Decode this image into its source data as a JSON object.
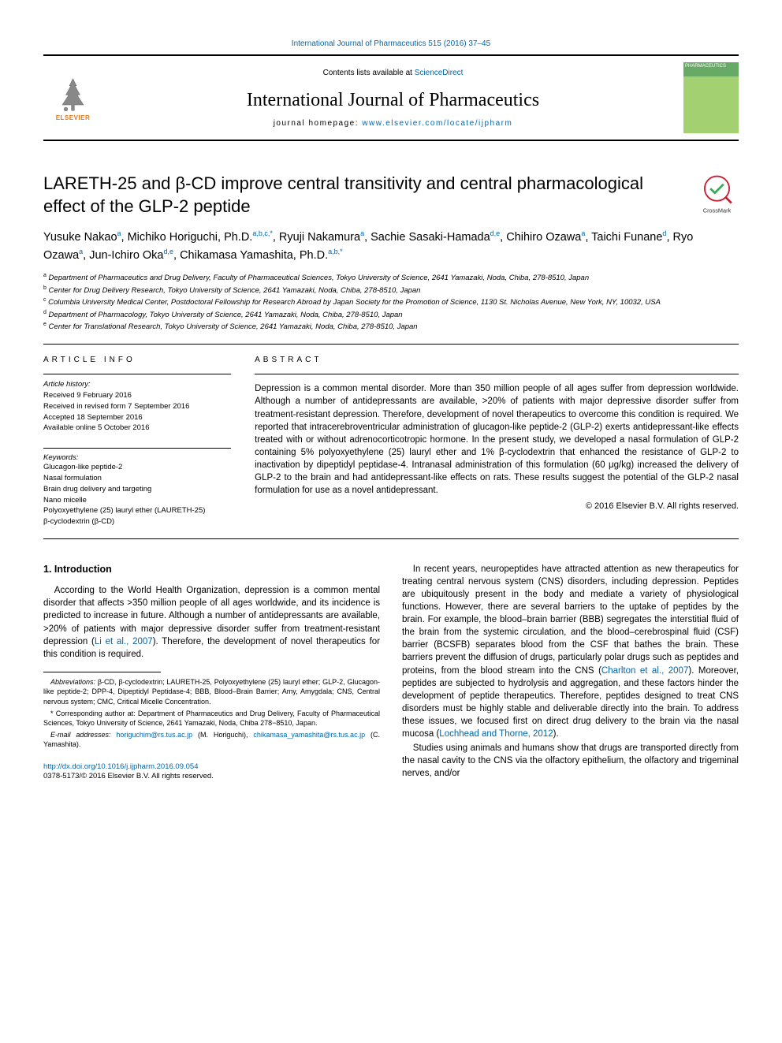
{
  "top_link": "International Journal of Pharmaceutics 515 (2016) 37–45",
  "header": {
    "contents_pre": "Contents lists available at ",
    "contents_link": "ScienceDirect",
    "journal": "International Journal of Pharmaceutics",
    "homepage_pre": "journal homepage: ",
    "homepage_link": "www.elsevier.com/locate/ijpharm",
    "publisher": "ELSEVIER",
    "cover_label": "PHARMACEUTICS"
  },
  "title": "LARETH-25 and β-CD improve central transitivity and central pharmacological effect of the GLP-2 peptide",
  "crossmark_label": "CrossMark",
  "authors_html": "Yusuke Nakao<sup>a</sup>, Michiko Horiguchi, Ph.D.<sup>a,b,c,*</sup>, Ryuji Nakamura<sup>a</sup>, Sachie Sasaki-Hamada<sup>d,e</sup>, Chihiro Ozawa<sup>a</sup>, Taichi Funane<sup>d</sup>, Ryo Ozawa<sup>a</sup>, Jun-Ichiro Oka<sup>d,e</sup>, Chikamasa Yamashita, Ph.D.<sup>a,b,*</sup>",
  "affiliations": [
    {
      "sup": "a",
      "text": "Department of Pharmaceutics and Drug Delivery, Faculty of Pharmaceutical Sciences, Tokyo University of Science, 2641 Yamazaki, Noda, Chiba, 278-8510, Japan"
    },
    {
      "sup": "b",
      "text": "Center for Drug Delivery Research, Tokyo University of Science, 2641 Yamazaki, Noda, Chiba, 278-8510, Japan"
    },
    {
      "sup": "c",
      "text": "Columbia University Medical Center, Postdoctoral Fellowship for Research Abroad by Japan Society for the Promotion of Science, 1130 St. Nicholas Avenue, New York, NY, 10032, USA"
    },
    {
      "sup": "d",
      "text": "Department of Pharmacology, Tokyo University of Science, 2641 Yamazaki, Noda, Chiba, 278-8510, Japan"
    },
    {
      "sup": "e",
      "text": "Center for Translational Research, Tokyo University of Science, 2641 Yamazaki, Noda, Chiba, 278-8510, Japan"
    }
  ],
  "article_info": {
    "head": "ARTICLE INFO",
    "hist_label": "Article history:",
    "hist": [
      "Received 9 February 2016",
      "Received in revised form 7 September 2016",
      "Accepted 18 September 2016",
      "Available online 5 October 2016"
    ],
    "kw_label": "Keywords:",
    "kw": [
      "Glucagon-like peptide-2",
      "Nasal formulation",
      "Brain drug delivery and targeting",
      "Nano micelle",
      "Polyoxyethylene (25) lauryl ether (LAURETH-25)",
      "β-cyclodextrin (β-CD)"
    ]
  },
  "abstract": {
    "head": "ABSTRACT",
    "text": "Depression is a common mental disorder. More than 350 million people of all ages suffer from depression worldwide. Although a number of antidepressants are available, >20% of patients with major depressive disorder suffer from treatment-resistant depression. Therefore, development of novel therapeutics to overcome this condition is required. We reported that intracerebroventricular administration of glucagon-like peptide-2 (GLP-2) exerts antidepressant-like effects treated with or without adrenocorticotropic hormone. In the present study, we developed a nasal formulation of GLP-2 containing 5% polyoxyethylene (25) lauryl ether and 1% β-cyclodextrin that enhanced the resistance of GLP-2 to inactivation by dipeptidyl peptidase-4. Intranasal administration of this formulation (60 μg/kg) increased the delivery of GLP-2 to the brain and had antidepressant-like effects on rats. These results suggest the potential of the GLP-2 nasal formulation for use as a novel antidepressant.",
    "copy": "© 2016 Elsevier B.V. All rights reserved."
  },
  "body": {
    "intro_head": "1. Introduction",
    "p1a": "According to the World Health Organization, depression is a common mental disorder that affects >350 million people of all ages worldwide, and its incidence is predicted to increase in future. Although a number of antidepressants are available, >20% of patients with major depressive disorder suffer from treatment-resistant depression (",
    "p1_cite": "Li et al., 2007",
    "p1b": "). Therefore, the development of novel therapeutics for this condition is required.",
    "p2a": "In recent years, neuropeptides have attracted attention as new therapeutics for treating central nervous system (CNS) disorders, including depression. Peptides are ubiquitously present in the body and mediate a variety of physiological functions. However, there are several barriers to the uptake of peptides by the brain. For example, the blood–brain barrier (BBB) segregates the interstitial fluid of the brain from the systemic circulation, and the blood–cerebrospinal fluid (CSF) barrier (BCSFB) separates blood from the CSF that bathes the brain. These barriers prevent the diffusion of drugs, particularly polar drugs such as peptides and proteins, from the blood stream into the CNS (",
    "p2_cite": "Charlton et al., 2007",
    "p2b": "). Moreover, peptides are subjected to hydrolysis and aggregation, and these factors hinder the development of peptide therapeutics. Therefore, peptides designed to treat CNS disorders must be highly stable and deliverable directly into the brain. To address these issues, we focused first on direct drug delivery to the brain via the nasal mucosa (",
    "p2_cite2": "Lochhead and Thorne, 2012",
    "p2c": ").",
    "p3": "Studies using animals and humans show that drugs are transported directly from the nasal cavity to the CNS via the olfactory epithelium, the olfactory and trigeminal nerves, and/or"
  },
  "footnotes": {
    "abbr_lbl": "Abbreviations:",
    "abbr": " β-CD, β-cyclodextrin; LAURETH-25, Polyoxyethylene (25) lauryl ether; GLP-2, Glucagon-like peptide-2; DPP-4, Dipeptidyl Peptidase-4; BBB, Blood–Brain Barrier; Amy, Amygdala; CNS, Central nervous system; CMC, Critical Micelle Concentration.",
    "corr": "* Corresponding author at: Department of Pharmaceutics and Drug Delivery, Faculty of Pharmaceutical Sciences, Tokyo University of Science, 2641 Yamazaki, Noda, Chiba 278−8510, Japan.",
    "email_lbl": "E-mail addresses:",
    "email1": "horiguchim@rs.tus.ac.jp",
    "email1_who": " (M. Horiguchi), ",
    "email2": "chikamasa_yamashita@rs.tus.ac.jp",
    "email2_who": " (C. Yamashita)."
  },
  "doi": {
    "link": "http://dx.doi.org/10.1016/j.ijpharm.2016.09.054",
    "issn": "0378-5173/© 2016 Elsevier B.V. All rights reserved."
  },
  "colors": {
    "link": "#0066aa",
    "elsevier_orange": "#e67817",
    "text": "#000000",
    "cover_green": "#a3d070"
  },
  "typography": {
    "body_pt": 11.5,
    "title_pt": 22,
    "journal_pt": 24,
    "small_pt": 9.5
  }
}
